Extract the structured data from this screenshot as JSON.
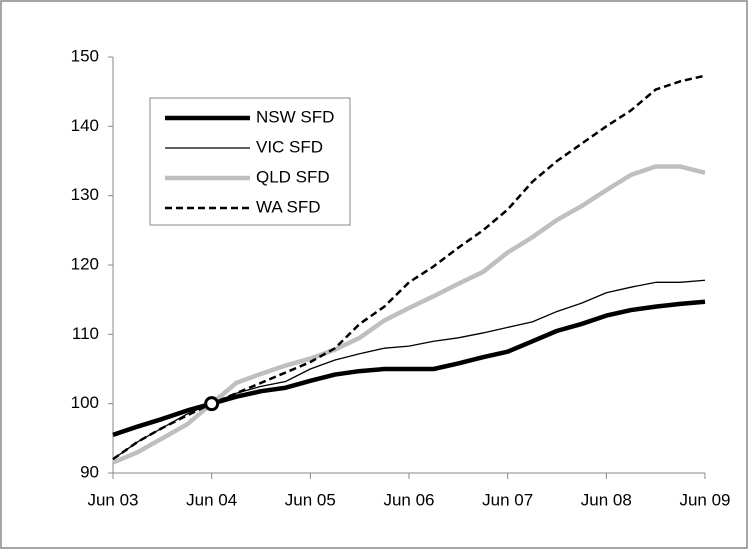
{
  "chart_data": {
    "type": "line",
    "categories": [
      "Jun 03",
      null,
      null,
      null,
      "Jun 04",
      null,
      null,
      null,
      "Jun 05",
      null,
      null,
      null,
      "Jun 06",
      null,
      null,
      null,
      "Jun 07",
      null,
      null,
      null,
      "Jun 08",
      null,
      null,
      null,
      "Jun 09"
    ],
    "series": [
      {
        "name": "NSW SFD",
        "color": "#000000",
        "values": [
          95.5,
          96.7,
          97.8,
          99,
          100,
          101,
          101.8,
          102.3,
          103.3,
          104.2,
          104.7,
          105,
          105,
          105,
          105.8,
          106.7,
          107.5,
          109,
          110.5,
          111.5,
          112.7,
          113.5,
          114,
          114.4,
          114.7
        ]
      },
      {
        "name": "VIC SFD",
        "color": "#000000",
        "values": [
          92,
          94.5,
          96.5,
          98.5,
          100,
          101.5,
          102.5,
          103.2,
          105,
          106.3,
          107.2,
          108,
          108.3,
          109,
          109.5,
          110.2,
          111,
          111.8,
          113.3,
          114.5,
          116,
          116.8,
          117.5,
          117.5,
          117.8
        ]
      },
      {
        "name": "QLD SFD",
        "color": "#bfbfbf",
        "values": [
          91.5,
          93,
          95,
          97,
          100,
          103,
          104.3,
          105.5,
          106.5,
          107.8,
          109.5,
          112,
          113.8,
          115.5,
          117.3,
          119,
          121.8,
          124,
          126.5,
          128.5,
          130.8,
          133,
          134.2,
          134.2,
          133.3
        ]
      },
      {
        "name": "WA SFD",
        "color": "#000000",
        "values": [
          92,
          94.5,
          96.5,
          98.3,
          100,
          101.5,
          103,
          104.5,
          106,
          108,
          111.5,
          114,
          117.5,
          119.8,
          122.5,
          125,
          128,
          132,
          135,
          137.5,
          140,
          142.3,
          145.3,
          146.5,
          147.3
        ]
      }
    ],
    "ylim": [
      90,
      150
    ],
    "yticks": [
      90,
      100,
      110,
      120,
      130,
      140,
      150
    ],
    "grid": false,
    "legend": "upper-left"
  }
}
